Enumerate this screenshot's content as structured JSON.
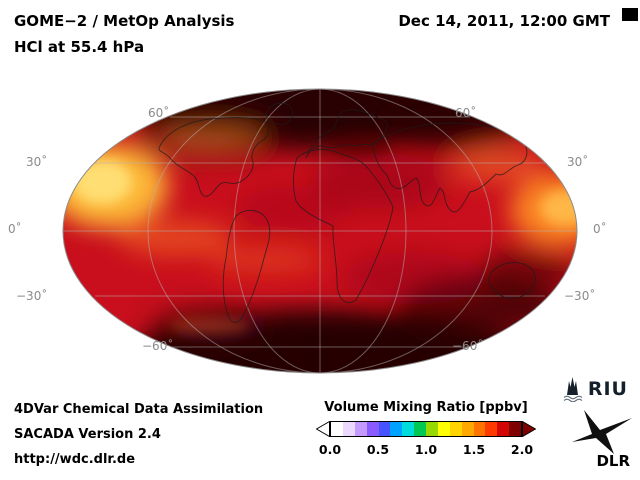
{
  "header": {
    "title_line1": "GOME−2 / MetOp Analysis",
    "title_line2": "HCl at 55.4 hPa",
    "datetime": "Dec 14, 2011, 12:00 GMT"
  },
  "map": {
    "lat_labels": [
      "60˚",
      "30˚",
      "0˚",
      "−30˚",
      "−60˚"
    ]
  },
  "colorbar": {
    "title": "Volume Mixing Ratio [ppbv]",
    "ticks": [
      "0.0",
      "0.5",
      "1.0",
      "1.5",
      "2.0"
    ]
  },
  "footer": {
    "line1": "4DVar Chemical Data Assimilation",
    "line2": "SACADA Version 2.4",
    "line3": "http://wdc.dlr.de"
  },
  "logos": {
    "riu_text": "RIU",
    "dlr_text": "DLR"
  },
  "chart_data": {
    "type": "heatmap",
    "title": "GOME−2 / MetOp Analysis",
    "subtitle": "HCl at 55.4 hPa",
    "datetime": "Dec 14, 2011, 12:00 GMT",
    "projection": "mollweide-global",
    "variable": "HCl volume mixing ratio",
    "units": "ppbv",
    "colorbar_label": "Volume Mixing Ratio [ppbv]",
    "range": [
      0.0,
      2.0
    ],
    "ticks": [
      0.0,
      0.5,
      1.0,
      1.5,
      2.0
    ],
    "colorbar_colors": [
      "#ffffff",
      "#ecd7ff",
      "#c49aff",
      "#8a5cff",
      "#4653ff",
      "#00a2ff",
      "#00dcdc",
      "#00c853",
      "#96d800",
      "#ffff00",
      "#ffd400",
      "#ffa800",
      "#ff7400",
      "#ff3a00",
      "#d40505",
      "#7e0000"
    ],
    "lat_gridlines_deg": [
      60,
      30,
      0,
      -30,
      -60
    ],
    "field_summary": [
      {
        "region": "high northern latitudes (polar cap, top of map)",
        "value_ppbv": "> 2.0 (off-scale dark)"
      },
      {
        "region": "high southern latitudes (polar cap, bottom of map)",
        "value_ppbv": "> 2.0 (off-scale dark)"
      },
      {
        "region": "tropics and mid-latitudes (most of globe)",
        "value_ppbv": "1.6 – 2.0 (red)"
      },
      {
        "region": "north-western map edge (~30–60 N)",
        "value_ppbv": "1.1 – 1.4 (yellow-orange)"
      },
      {
        "region": "eastern map edge (~0–30 N)",
        "value_ppbv": "1.3 – 1.5 (orange)"
      },
      {
        "region": "scattered mid-latitude filaments",
        "value_ppbv": "1.4 – 1.6 (orange-red)"
      }
    ]
  }
}
